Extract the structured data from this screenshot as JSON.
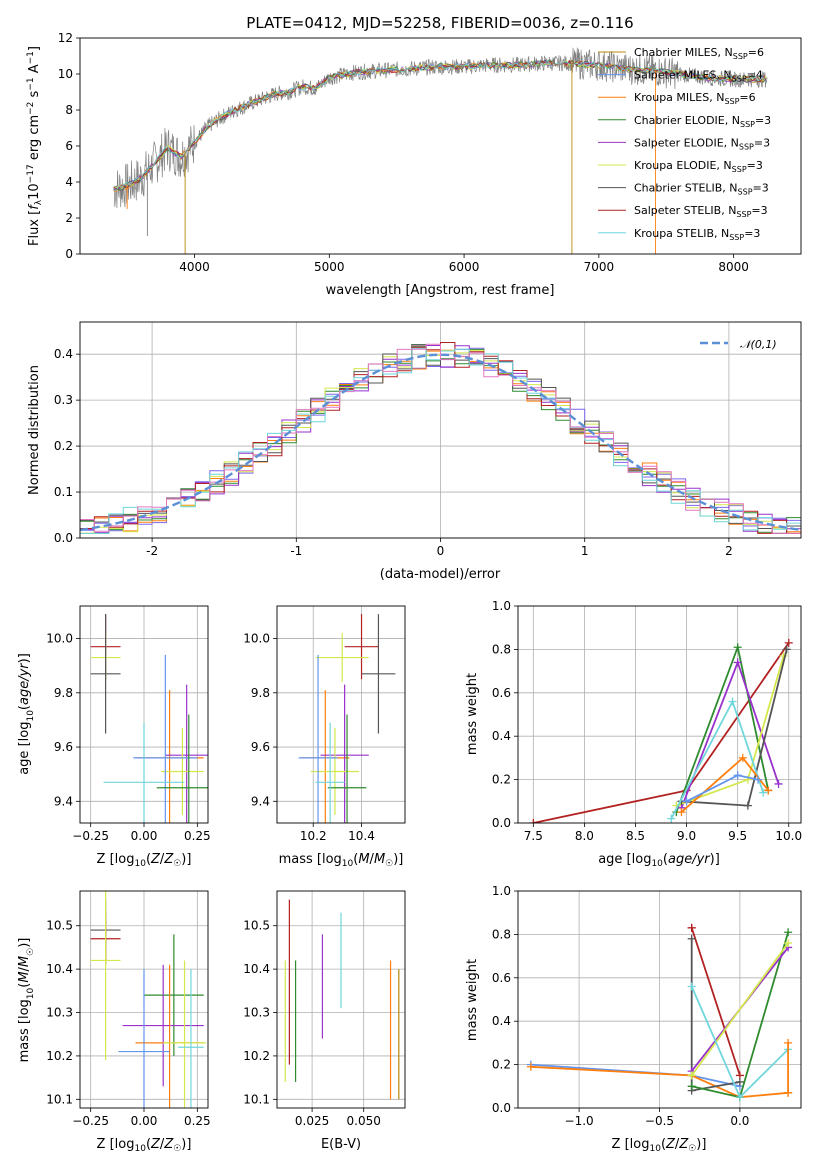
{
  "figure": {
    "title": "PLATE=0412, MJD=52258, FIBERID=0036, z=0.116"
  },
  "model_colors": [
    "#b8860b",
    "#6495ed",
    "#ff7f0e",
    "#2e8b2e",
    "#9932cc",
    "#d4e84d",
    "#555555",
    "#b22222",
    "#6fd6dc"
  ],
  "hist_colors": [
    "#7b68ee",
    "#ff7f0e",
    "#2e8b2e",
    "#9932cc",
    "#d4e84d",
    "#555555",
    "#b22222",
    "#6fd6dc",
    "#e377c2"
  ],
  "legend_entries": [
    {
      "name": "Chabrier MILES",
      "nssp": "6"
    },
    {
      "name": "Salpeter MILES",
      "nssp": "4"
    },
    {
      "name": "Kroupa MILES",
      "nssp": "6"
    },
    {
      "name": "Chabrier ELODIE",
      "nssp": "3"
    },
    {
      "name": "Salpeter ELODIE",
      "nssp": "3"
    },
    {
      "name": "Kroupa ELODIE",
      "nssp": "3"
    },
    {
      "name": "Chabrier STELIB",
      "nssp": "3"
    },
    {
      "name": "Salpeter STELIB",
      "nssp": "3"
    },
    {
      "name": "Kroupa STELIB",
      "nssp": "3"
    }
  ],
  "chart_data": [
    {
      "id": "spectrum",
      "type": "line",
      "xlabel": "wavelength [Angstrom, rest frame]",
      "ylabel": "Flux [f_λ 10^-17 erg cm^-2 s^-1 A^-1]",
      "xlim": [
        3150,
        8500
      ],
      "ylim": [
        0,
        12
      ],
      "xticks": [
        4000,
        5000,
        6000,
        7000,
        8000
      ],
      "yticks": [
        0,
        2,
        4,
        6,
        8,
        10,
        12
      ],
      "legend": "top-right",
      "data_x": [
        3400,
        3500,
        3600,
        3700,
        3800,
        3900,
        4000,
        4100,
        4200,
        4300,
        4400,
        4500,
        4600,
        4700,
        4800,
        4900,
        5000,
        5200,
        5400,
        5600,
        5800,
        6000,
        6200,
        6400,
        6600,
        6800,
        7000,
        7200,
        7400,
        7600,
        7800,
        8000,
        8250
      ],
      "data_y": [
        3.6,
        3.8,
        4.2,
        5.0,
        5.9,
        5.4,
        6.2,
        7.1,
        7.6,
        8.0,
        8.3,
        8.6,
        8.9,
        9.0,
        9.3,
        9.2,
        9.8,
        10.1,
        10.2,
        10.3,
        10.4,
        10.4,
        10.5,
        10.5,
        10.6,
        10.6,
        10.5,
        10.3,
        10.2,
        10.0,
        9.8,
        9.7,
        9.7
      ]
    },
    {
      "id": "residuals",
      "type": "histogram",
      "xlabel": "(data-model)/error",
      "ylabel": "Normed distribution",
      "xlim": [
        -2.5,
        2.5
      ],
      "ylim": [
        0,
        0.47
      ],
      "xticks": [
        -2,
        -1,
        0,
        1,
        2
      ],
      "yticks": [
        0.0,
        0.1,
        0.2,
        0.3,
        0.4
      ],
      "grid": true,
      "legend": "top-right",
      "reference_label": "𝒩(0,1)"
    },
    {
      "id": "age_vs_Z",
      "type": "errorbar",
      "xlabel": "Z [log10(Z/Z☉)]",
      "ylabel": "age [log10(age/yr)]",
      "xlim": [
        -0.3,
        0.3
      ],
      "ylim": [
        9.32,
        10.12
      ],
      "xticks": [
        -0.25,
        0.0,
        0.25
      ],
      "xtick_labels": [
        "−0.25",
        "0.00",
        "0.25"
      ],
      "yticks": [
        9.4,
        9.6,
        9.8,
        10.0
      ],
      "grid": true,
      "points": [
        {
          "x": -0.18,
          "y": 9.97,
          "xe": 0.07,
          "ye": 0.12,
          "c": 7
        },
        {
          "x": -0.18,
          "y": 9.93,
          "xe": 0.07,
          "ye": 0.09,
          "c": 5
        },
        {
          "x": -0.18,
          "y": 9.87,
          "xe": 0.07,
          "ye": 0.22,
          "c": 6
        },
        {
          "x": 0.12,
          "y": 9.56,
          "xe": 0.16,
          "ye": 0.25,
          "c": 2
        },
        {
          "x": 0.2,
          "y": 9.57,
          "xe": 0.1,
          "ye": 0.26,
          "c": 4
        },
        {
          "x": 0.18,
          "y": 9.51,
          "xe": 0.1,
          "ye": 0.16,
          "c": 5
        },
        {
          "x": 0.1,
          "y": 9.56,
          "xe": 0.15,
          "ye": 0.38,
          "c": 1
        },
        {
          "x": 0.21,
          "y": 9.45,
          "xe": 0.15,
          "ye": 0.27,
          "c": 3
        },
        {
          "x": 0.0,
          "y": 9.47,
          "xe": 0.19,
          "ye": 0.22,
          "c": 8
        }
      ]
    },
    {
      "id": "age_vs_mass",
      "type": "errorbar",
      "xlabel": "mass [log10(M/M☉)]",
      "xlim": [
        10.05,
        10.58
      ],
      "ylim": [
        9.32,
        10.12
      ],
      "xticks": [
        10.2,
        10.4
      ],
      "yticks": [
        9.4,
        9.6,
        9.8,
        10.0
      ],
      "grid": true,
      "points": [
        {
          "x": 10.4,
          "y": 9.97,
          "xe": 0.07,
          "ye": 0.12,
          "c": 7
        },
        {
          "x": 10.32,
          "y": 9.93,
          "xe": 0.11,
          "ye": 0.09,
          "c": 5
        },
        {
          "x": 10.47,
          "y": 9.87,
          "xe": 0.07,
          "ye": 0.22,
          "c": 6
        },
        {
          "x": 10.25,
          "y": 9.56,
          "xe": 0.1,
          "ye": 0.25,
          "c": 2
        },
        {
          "x": 10.33,
          "y": 9.57,
          "xe": 0.1,
          "ye": 0.26,
          "c": 4
        },
        {
          "x": 10.29,
          "y": 9.51,
          "xe": 0.1,
          "ye": 0.16,
          "c": 5
        },
        {
          "x": 10.22,
          "y": 9.56,
          "xe": 0.08,
          "ye": 0.38,
          "c": 1
        },
        {
          "x": 10.34,
          "y": 9.45,
          "xe": 0.08,
          "ye": 0.27,
          "c": 3
        },
        {
          "x": 10.27,
          "y": 9.47,
          "xe": 0.06,
          "ye": 0.22,
          "c": 8
        }
      ]
    },
    {
      "id": "weight_vs_age",
      "type": "line",
      "xlabel": "age [log10(age/yr)]",
      "ylabel": "mass weight",
      "xlim": [
        7.35,
        10.12
      ],
      "ylim": [
        0,
        1.0
      ],
      "xticks": [
        7.5,
        8.0,
        8.5,
        9.0,
        9.5,
        10.0
      ],
      "yticks": [
        0.0,
        0.2,
        0.4,
        0.6,
        0.8,
        1.0
      ],
      "grid": true,
      "series": [
        {
          "c": 7,
          "x": [
            7.5,
            9.0,
            10.0
          ],
          "y": [
            0.0,
            0.15,
            0.83
          ]
        },
        {
          "c": 3,
          "x": [
            8.9,
            9.5,
            9.8
          ],
          "y": [
            0.05,
            0.81,
            0.15
          ]
        },
        {
          "c": 4,
          "x": [
            8.95,
            9.5,
            9.9
          ],
          "y": [
            0.07,
            0.74,
            0.18
          ]
        },
        {
          "c": 5,
          "x": [
            8.9,
            9.6,
            9.95
          ],
          "y": [
            0.08,
            0.2,
            0.77
          ]
        },
        {
          "c": 6,
          "x": [
            8.95,
            9.6,
            9.98
          ],
          "y": [
            0.1,
            0.08,
            0.8
          ]
        },
        {
          "c": 8,
          "x": [
            8.85,
            9.45,
            9.75
          ],
          "y": [
            0.02,
            0.56,
            0.14
          ]
        },
        {
          "c": 2,
          "x": [
            8.95,
            9.55,
            9.8
          ],
          "y": [
            0.05,
            0.3,
            0.15
          ]
        },
        {
          "c": 1,
          "x": [
            9.0,
            9.5,
            9.7
          ],
          "y": [
            0.1,
            0.22,
            0.2
          ]
        }
      ]
    },
    {
      "id": "mass_vs_Z",
      "type": "errorbar",
      "xlabel": "Z [log10(Z/Z☉)]",
      "ylabel": "mass [log10(M/M☉)]",
      "xlim": [
        -0.3,
        0.3
      ],
      "ylim": [
        10.08,
        10.58
      ],
      "xticks": [
        -0.25,
        0.0,
        0.25
      ],
      "xtick_labels": [
        "−0.25",
        "0.00",
        "0.25"
      ],
      "yticks": [
        10.1,
        10.2,
        10.3,
        10.4,
        10.5
      ],
      "grid": true,
      "points": [
        {
          "x": -0.18,
          "y": 10.49,
          "xe": 0.07,
          "ye": 0.07,
          "c": 6
        },
        {
          "x": -0.18,
          "y": 10.47,
          "xe": 0.07,
          "ye": 0.06,
          "c": 7
        },
        {
          "x": -0.18,
          "y": 10.42,
          "xe": 0.07,
          "ye": 0.23,
          "c": 5
        },
        {
          "x": 0.14,
          "y": 10.34,
          "xe": 0.14,
          "ye": 0.14,
          "c": 3
        },
        {
          "x": 0.09,
          "y": 10.27,
          "xe": 0.19,
          "ye": 0.14,
          "c": 4
        },
        {
          "x": 0.12,
          "y": 10.23,
          "xe": 0.16,
          "ye": 0.18,
          "c": 2
        },
        {
          "x": 0.19,
          "y": 10.23,
          "xe": 0.1,
          "ye": 0.19,
          "c": 5
        },
        {
          "x": 0.0,
          "y": 10.21,
          "xe": 0.12,
          "ye": 0.19,
          "c": 1
        },
        {
          "x": 0.22,
          "y": 10.22,
          "xe": 0.06,
          "ye": 0.18,
          "c": 8
        }
      ]
    },
    {
      "id": "mass_vs_ebv",
      "type": "errorbar",
      "xlabel": "E(B-V)",
      "xlim": [
        0.008,
        0.07
      ],
      "ylim": [
        10.08,
        10.58
      ],
      "xticks": [
        0.025,
        0.05
      ],
      "yticks": [
        10.1,
        10.2,
        10.3,
        10.4,
        10.5
      ],
      "grid": true,
      "points": [
        {
          "x": 0.012,
          "y": 10.28,
          "xe": 0,
          "ye": 0.14,
          "c": 5
        },
        {
          "x": 0.014,
          "y": 10.37,
          "xe": 0,
          "ye": 0.19,
          "c": 7
        },
        {
          "x": 0.017,
          "y": 10.28,
          "xe": 0,
          "ye": 0.14,
          "c": 3
        },
        {
          "x": 0.03,
          "y": 10.36,
          "xe": 0,
          "ye": 0.12,
          "c": 4
        },
        {
          "x": 0.039,
          "y": 10.42,
          "xe": 0,
          "ye": 0.11,
          "c": 8
        },
        {
          "x": 0.063,
          "y": 10.26,
          "xe": 0,
          "ye": 0.16,
          "c": 2
        },
        {
          "x": 0.067,
          "y": 10.25,
          "xe": 0,
          "ye": 0.15,
          "c": 0
        }
      ]
    },
    {
      "id": "weight_vs_Z",
      "type": "line",
      "xlabel": "Z [log10(Z/Z☉)]",
      "ylabel": "mass weight",
      "xlim": [
        -1.38,
        0.38
      ],
      "ylim": [
        0,
        1.0
      ],
      "xticks": [
        -1.0,
        -0.5,
        0.0
      ],
      "xtick_labels": [
        "−1.0",
        "−0.5",
        "0.0"
      ],
      "yticks": [
        0.0,
        0.2,
        0.4,
        0.6,
        0.8,
        1.0
      ],
      "grid": true,
      "series": [
        {
          "c": 1,
          "x": [
            -1.3,
            -0.3,
            0.0
          ],
          "y": [
            0.2,
            0.15,
            0.1
          ]
        },
        {
          "c": 2,
          "x": [
            -1.3,
            -0.3,
            0.0,
            0.3
          ],
          "y": [
            0.19,
            0.15,
            0.05,
            0.07
          ]
        },
        {
          "c": 7,
          "x": [
            -0.3,
            0.0,
            -0.3
          ],
          "y": [
            0.83,
            0.15,
            0.83
          ]
        },
        {
          "c": 6,
          "x": [
            -0.3,
            -0.3,
            0.0
          ],
          "y": [
            0.78,
            0.08,
            0.12
          ]
        },
        {
          "c": 3,
          "x": [
            -0.3,
            0.0,
            0.3
          ],
          "y": [
            0.1,
            0.05,
            0.81
          ]
        },
        {
          "c": 4,
          "x": [
            -0.3,
            0.3
          ],
          "y": [
            0.17,
            0.74
          ]
        },
        {
          "c": 5,
          "x": [
            -0.3,
            0.3
          ],
          "y": [
            0.15,
            0.76
          ]
        },
        {
          "c": 8,
          "x": [
            -0.3,
            0.0,
            0.3
          ],
          "y": [
            0.56,
            0.05,
            0.27
          ]
        },
        {
          "c": 2,
          "x": [
            0.3,
            0.3
          ],
          "y": [
            0.07,
            0.3
          ]
        }
      ]
    }
  ]
}
